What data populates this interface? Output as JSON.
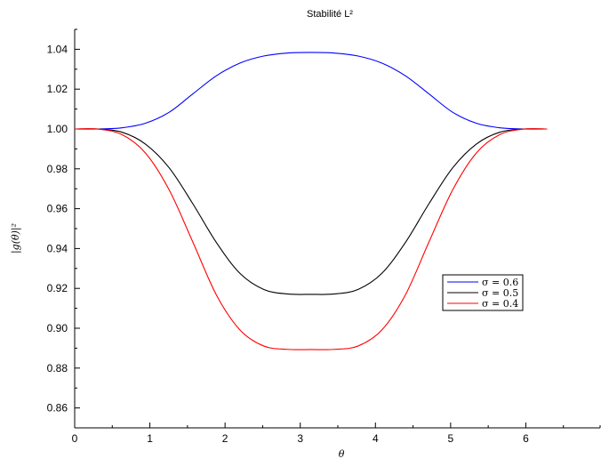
{
  "chart_data": {
    "type": "line",
    "title": "Stabilité L²",
    "xlabel": "θ",
    "ylabel": "|g(θ)|²",
    "xlim": [
      0,
      7
    ],
    "ylim": [
      0.85,
      1.05
    ],
    "x_ticks": [
      0,
      1,
      2,
      3,
      4,
      5,
      6
    ],
    "x_tick_labels": [
      "0",
      "1",
      "2",
      "3",
      "4",
      "5",
      "6"
    ],
    "y_ticks": [
      0.86,
      0.88,
      0.9,
      0.92,
      0.94,
      0.96,
      0.98,
      1.0,
      1.02,
      1.04
    ],
    "y_tick_labels": [
      "0.86",
      "0.88",
      "0.90",
      "0.92",
      "0.94",
      "0.96",
      "0.98",
      "1.00",
      "1.02",
      "1.04"
    ],
    "grid": false,
    "legend_position": "right",
    "x": [
      0,
      0.314,
      0.628,
      0.942,
      1.257,
      1.571,
      1.885,
      2.199,
      2.513,
      2.827,
      3.142,
      3.456,
      3.77,
      4.084,
      4.398,
      4.712,
      5.027,
      5.341,
      5.655,
      5.969,
      6.283
    ],
    "series": [
      {
        "name": "σ = 0.6",
        "color": "#0000ff",
        "values": [
          1.0,
          1.0,
          1.0006,
          1.0029,
          1.0084,
          1.0176,
          1.0267,
          1.0331,
          1.0366,
          1.0381,
          1.0384,
          1.0381,
          1.0366,
          1.0331,
          1.0267,
          1.0176,
          1.0084,
          1.0029,
          1.0006,
          1.0,
          1.0
        ]
      },
      {
        "name": "σ = 0.5",
        "color": "#000000",
        "values": [
          1.0,
          1.0,
          0.9984,
          0.9924,
          0.9805,
          0.9625,
          0.943,
          0.9275,
          0.9195,
          0.9172,
          0.917,
          0.9172,
          0.9195,
          0.9275,
          0.943,
          0.9625,
          0.9805,
          0.9924,
          0.9984,
          1.0,
          1.0
        ]
      },
      {
        "name": "σ = 0.4",
        "color": "#ff0000",
        "values": [
          1.0,
          0.9999,
          0.9972,
          0.9879,
          0.9694,
          0.9433,
          0.9167,
          0.8991,
          0.8911,
          0.8894,
          0.8893,
          0.8894,
          0.8911,
          0.8991,
          0.9167,
          0.9433,
          0.9694,
          0.9879,
          0.9972,
          0.9999,
          1.0
        ]
      }
    ]
  }
}
